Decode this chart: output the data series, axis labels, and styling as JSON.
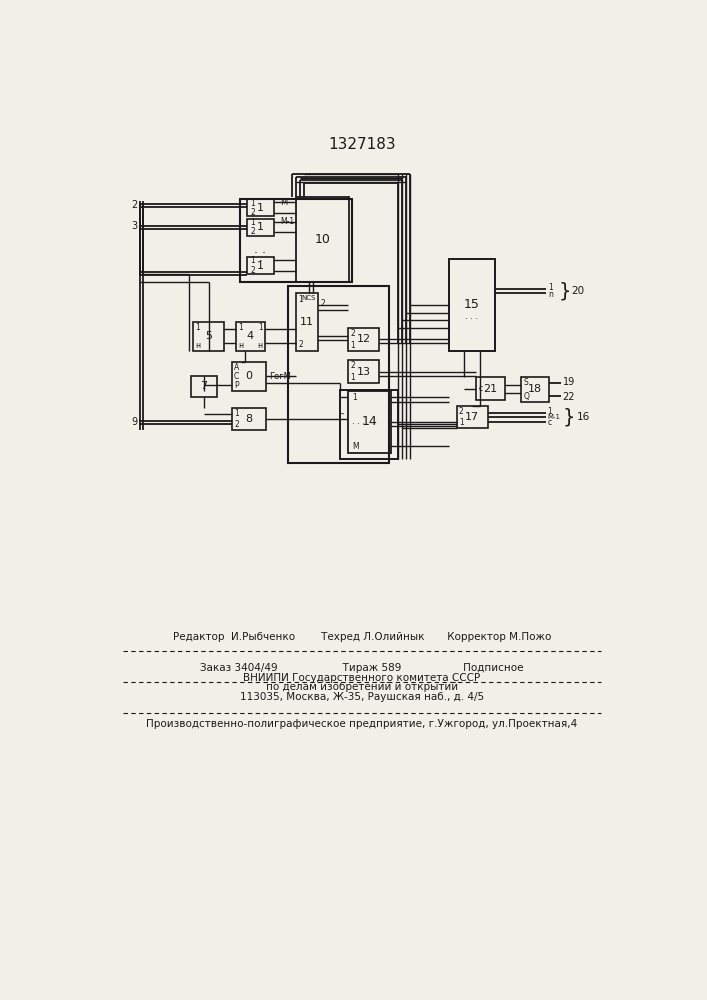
{
  "title": "1327183",
  "bg_color": "#f0efe8",
  "line_color": "#1a1a1a",
  "footer_line1": "Редактор  И.Рыбченко        Техред Л.Олийнык       Корректор М.Пожо",
  "footer_line2": "Заказ 3404/49                    Тираж 589                   Подписное",
  "footer_line3": "ВНИИПИ Государственного комитета СССР",
  "footer_line4": "по делам изобретений и открытий",
  "footer_line5": "113035, Москва, Ж-35, Раушская наб., д. 4/5",
  "footer_line6": "Производственно-полиграфическое предприятие, г.Ужгород, ул.Проектная,4"
}
